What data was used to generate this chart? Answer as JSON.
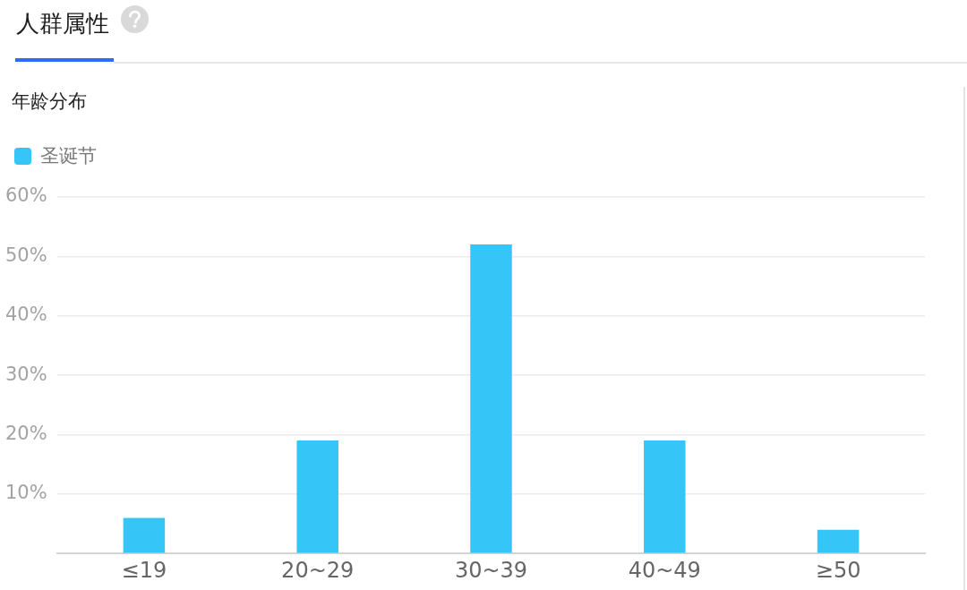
{
  "chart_data": {
    "type": "bar",
    "title": "人群属性",
    "subtitle": "年龄分布",
    "categories": [
      "≤19",
      "20~29",
      "30~39",
      "40~49",
      "≥50"
    ],
    "series": [
      {
        "name": "圣诞节",
        "color": "#35c6f7",
        "values": [
          6,
          19,
          52,
          19,
          4
        ]
      }
    ],
    "ylim": [
      0,
      60
    ],
    "yticks": [
      {
        "value": 0,
        "label": null
      },
      {
        "value": 10,
        "label": "10%"
      },
      {
        "value": 20,
        "label": "20%"
      },
      {
        "value": 30,
        "label": "30%"
      },
      {
        "value": 40,
        "label": "40%"
      },
      {
        "value": 50,
        "label": "50%"
      },
      {
        "value": 60,
        "label": "60%"
      }
    ],
    "grid": "y",
    "legend": "top left"
  }
}
